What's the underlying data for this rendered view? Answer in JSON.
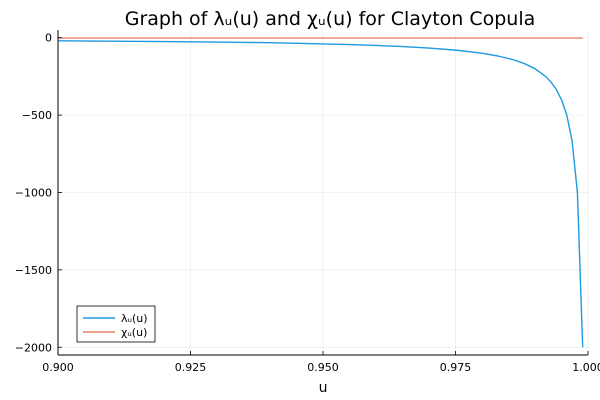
{
  "chart_data": {
    "type": "line",
    "title": "Graph of λᵤ(u) and χᵤ(u) for Clayton Copula",
    "xlabel": "u",
    "ylabel": "",
    "xlim": [
      0.9,
      1.0
    ],
    "ylim": [
      -2050,
      50
    ],
    "xticks": [
      0.9,
      0.925,
      0.95,
      0.975,
      1.0
    ],
    "xtick_labels": [
      "0.900",
      "0.925",
      "0.950",
      "0.975",
      "1.000"
    ],
    "yticks": [
      0,
      -500,
      -1000,
      -1500,
      -2000
    ],
    "ytick_labels": [
      "0",
      "−500",
      "−1000",
      "−1500",
      "−2000"
    ],
    "grid": true,
    "legend_position": "bottom-left",
    "series": [
      {
        "name": "λᵤ(u)",
        "color": "#1e9ae0",
        "x": [
          0.9,
          0.91,
          0.92,
          0.93,
          0.94,
          0.95,
          0.955,
          0.96,
          0.965,
          0.97,
          0.975,
          0.98,
          0.983,
          0.986,
          0.988,
          0.99,
          0.992,
          0.993,
          0.994,
          0.995,
          0.996,
          0.997,
          0.998,
          0.999
        ],
        "values": [
          -20,
          -22,
          -25,
          -28,
          -32,
          -40,
          -44,
          -50,
          -57,
          -67,
          -80,
          -100,
          -118,
          -143,
          -167,
          -200,
          -250,
          -286,
          -333,
          -400,
          -500,
          -667,
          -1000,
          -2000
        ]
      },
      {
        "name": "χᵤ(u)",
        "color": "#e8836b",
        "x": [
          0.9,
          0.999
        ],
        "values": [
          -2,
          -2
        ]
      }
    ]
  }
}
